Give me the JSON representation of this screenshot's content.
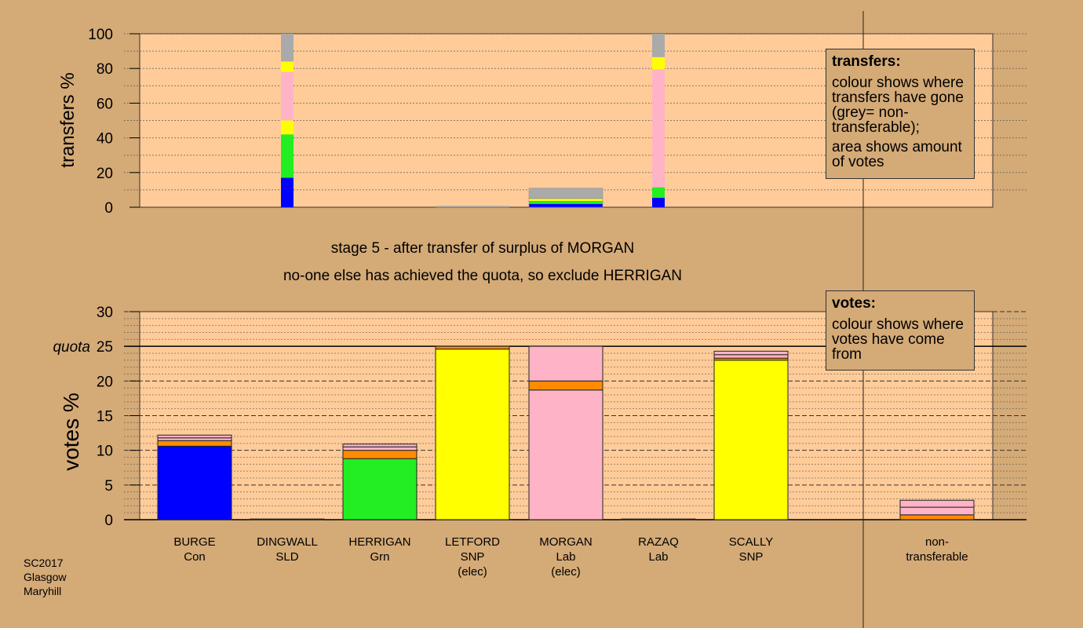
{
  "chart_data": [
    {
      "type": "bar",
      "stacked": true,
      "ylabel": "transfers %",
      "ylim": [
        0,
        100
      ],
      "yticks": [
        0,
        20,
        40,
        60,
        80,
        100
      ],
      "stacks": [
        {
          "segments": []
        },
        {
          "segments": [
            {
              "color": "#0000ff",
              "value": 17
            },
            {
              "color": "#22ee22",
              "value": 25
            },
            {
              "color": "#ffff00",
              "value": 8
            },
            {
              "color": "#ffb3c6",
              "value": 28
            },
            {
              "color": "#ffff00",
              "value": 6
            },
            {
              "color": "#aaaaaa",
              "value": 16
            }
          ]
        },
        {
          "segments": []
        },
        {
          "segments": [
            {
              "color": "#aaaaaa",
              "value": 0.5
            }
          ]
        },
        {
          "segments": [
            {
              "color": "#0000ff",
              "value": 2
            },
            {
              "color": "#22ee22",
              "value": 1.5
            },
            {
              "color": "#ffff00",
              "value": 1.5
            },
            {
              "color": "#aaaaaa",
              "value": 6
            }
          ]
        },
        {
          "segments": [
            {
              "color": "#0000ff",
              "value": 5.5
            },
            {
              "color": "#22ee22",
              "value": 6
            },
            {
              "color": "#ffb3c6",
              "value": 68
            },
            {
              "color": "#ffff00",
              "value": 7
            },
            {
              "color": "#aaaaaa",
              "value": 13.5
            }
          ]
        },
        {
          "segments": []
        },
        {
          "segments": []
        }
      ]
    },
    {
      "type": "bar",
      "stacked": true,
      "ylabel": "votes %",
      "ylim": [
        0,
        30
      ],
      "yticks": [
        0,
        5,
        10,
        15,
        20,
        25,
        30
      ],
      "quota": 25,
      "quota_label": "quota",
      "categories": [
        {
          "name": "BURGE",
          "party": "Con",
          "status": ""
        },
        {
          "name": "DINGWALL",
          "party": "SLD",
          "status": ""
        },
        {
          "name": "HERRIGAN",
          "party": "Grn",
          "status": ""
        },
        {
          "name": "LETFORD",
          "party": "SNP",
          "status": "(elec)"
        },
        {
          "name": "MORGAN",
          "party": "Lab",
          "status": "(elec)"
        },
        {
          "name": "RAZAQ",
          "party": "Lab",
          "status": ""
        },
        {
          "name": "SCALLY",
          "party": "SNP",
          "status": ""
        },
        {
          "name": "",
          "party": "",
          "status": ""
        },
        {
          "name": "non-",
          "party": "transferable",
          "status": ""
        }
      ],
      "stacks": [
        {
          "segments": [
            {
              "color": "#0000ff",
              "value": 10.6
            },
            {
              "color": "#ff8c00",
              "value": 0.8
            },
            {
              "color": "#ffb3c6",
              "value": 0.4
            },
            {
              "color": "#ffb3c6",
              "value": 0.4
            }
          ]
        },
        {
          "segments": [
            {
              "color": "#0000ff",
              "value": 0.1
            }
          ]
        },
        {
          "segments": [
            {
              "color": "#22ee22",
              "value": 8.8
            },
            {
              "color": "#ff8c00",
              "value": 1.2
            },
            {
              "color": "#ffb3c6",
              "value": 0.5
            },
            {
              "color": "#ffb3c6",
              "value": 0.4
            }
          ]
        },
        {
          "segments": [
            {
              "color": "#ffff00",
              "value": 24.6
            },
            {
              "color": "#ff8c00",
              "value": 0.4
            }
          ]
        },
        {
          "segments": [
            {
              "color": "#ffb3c6",
              "value": 18.7
            },
            {
              "color": "#ff8c00",
              "value": 1.3
            },
            {
              "color": "#ffb3c6",
              "value": 5.0
            }
          ]
        },
        {
          "segments": [
            {
              "color": "#ffb3c6",
              "value": 0.1
            }
          ]
        },
        {
          "segments": [
            {
              "color": "#ffff00",
              "value": 23.0
            },
            {
              "color": "#ff8c00",
              "value": 0.3
            },
            {
              "color": "#ffb3c6",
              "value": 0.5
            },
            {
              "color": "#ffb3c6",
              "value": 0.5
            }
          ]
        },
        {
          "segments": []
        },
        {
          "segments": [
            {
              "color": "#ff8c00",
              "value": 0.7
            },
            {
              "color": "#ffb3c6",
              "value": 1.1
            },
            {
              "color": "#ffb3c6",
              "value": 1.0
            }
          ]
        }
      ]
    }
  ],
  "header": {
    "line1": "stage 5 - after transfer of surplus of MORGAN",
    "line2": "no-one else has achieved the quota, so exclude HERRIGAN"
  },
  "legend_transfers": {
    "title": "transfers:",
    "text1": "colour shows where transfers have gone (grey= non-transferable);",
    "text2": "area shows amount of votes"
  },
  "legend_votes": {
    "title": "votes:",
    "text1": "colour shows where votes have come from"
  },
  "footer": {
    "line1": "SC2017",
    "line2": "Glasgow",
    "line3": "Maryhill"
  },
  "colors": {
    "background": "#d4aa77",
    "plot_area": "#ffcc99"
  }
}
